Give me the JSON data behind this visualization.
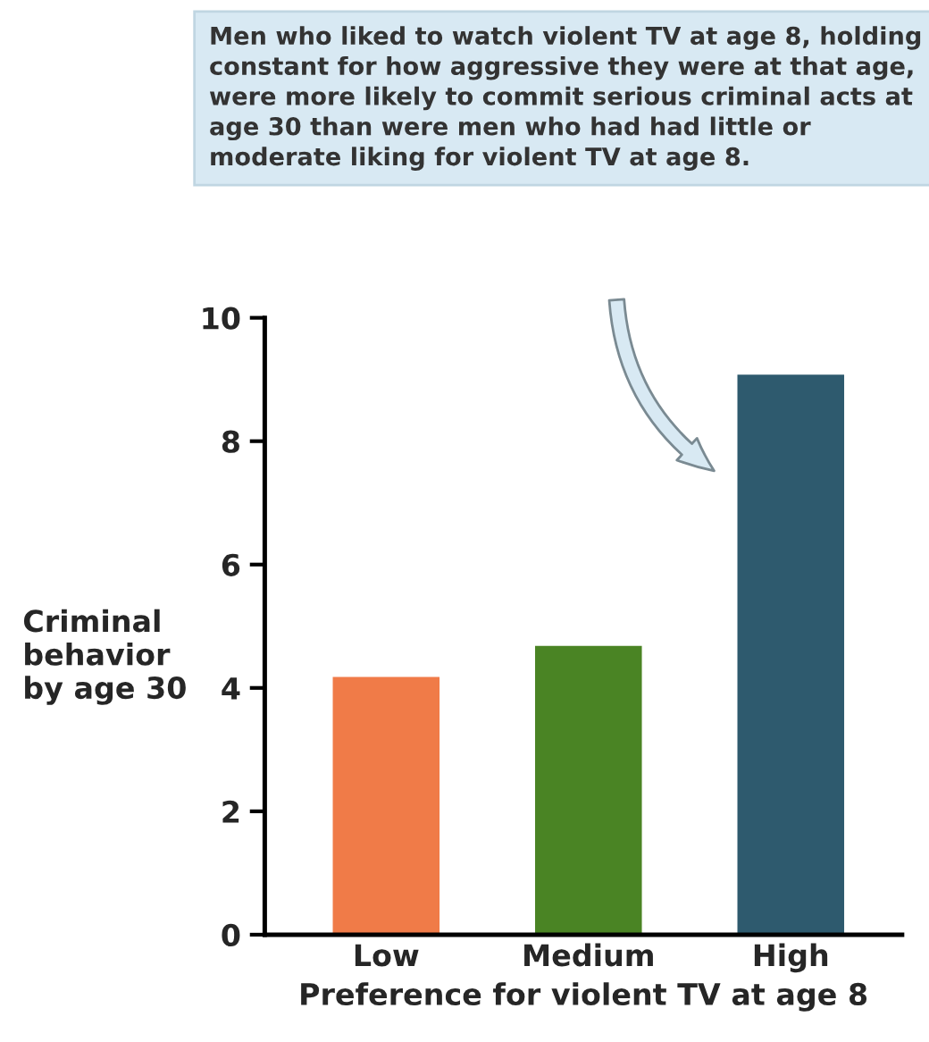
{
  "chart_data": {
    "type": "bar",
    "categories": [
      "Low",
      "Medium",
      "High"
    ],
    "values": [
      4.2,
      4.7,
      9.1
    ],
    "colors": [
      "#f07b48",
      "#4a8424",
      "#2e5a6e"
    ],
    "xlabel": "Preference for violent TV at age 8",
    "ylabel": "Criminal\nbehavior\nby age 30",
    "ylim": [
      0,
      10
    ],
    "yticks": [
      0,
      2,
      4,
      6,
      8,
      10
    ],
    "annotations": [
      "Men who liked to watch violent TV at age 8, holding constant for how aggressive they were at that age, were more likely to commit serious criminal acts at age 30 than were men who had had little or moderate liking for violent TV at age 8."
    ],
    "grid": false
  }
}
